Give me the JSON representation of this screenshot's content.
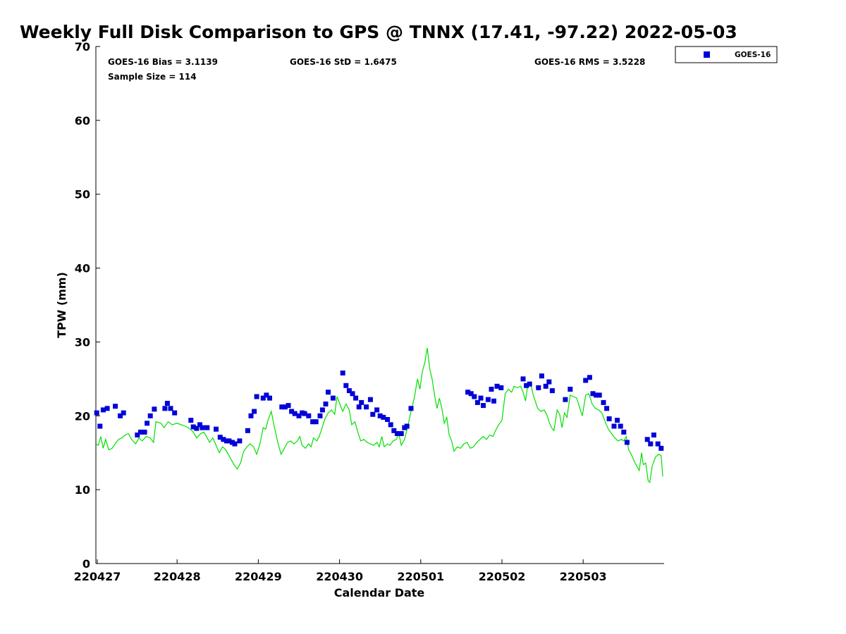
{
  "chart_data": {
    "type": "scatter",
    "title": "Weekly Full Disk Comparison to GPS @ TNNX (17.41, -97.22) 2022-05-03",
    "xlabel": "Calendar Date",
    "ylabel": "TPW (mm)",
    "ylim": [
      0,
      70
    ],
    "yticks": [
      "0",
      "10",
      "20",
      "30",
      "40",
      "50",
      "60",
      "70"
    ],
    "xlim_days": [
      0,
      7.0
    ],
    "xtick_labels": [
      "220427",
      "220428",
      "220429",
      "220430",
      "220501",
      "220502",
      "220503"
    ],
    "stats": {
      "bias": "GOES-16 Bias = 3.1139",
      "std": "GOES-16 StD = 1.6475",
      "rms": "GOES-16 RMS = 3.5228",
      "sample": "Sample Size = 114"
    },
    "legend": {
      "position": "top-right",
      "entries": [
        "GOES-16"
      ]
    },
    "colors": {
      "goes": "#0000d8",
      "gps": "#00e000"
    },
    "series": [
      {
        "name": "GOES-16",
        "marker": "square",
        "color": "#0000d8",
        "points": [
          [
            0.01,
            20.4
          ],
          [
            0.05,
            18.6
          ],
          [
            0.09,
            20.8
          ],
          [
            0.14,
            21.0
          ],
          [
            0.24,
            21.3
          ],
          [
            0.3,
            20.0
          ],
          [
            0.34,
            20.4
          ],
          [
            0.51,
            17.4
          ],
          [
            0.55,
            17.8
          ],
          [
            0.6,
            17.8
          ],
          [
            0.63,
            19.0
          ],
          [
            0.67,
            20.0
          ],
          [
            0.72,
            20.9
          ],
          [
            0.85,
            21.0
          ],
          [
            0.88,
            21.7
          ],
          [
            0.92,
            21.0
          ],
          [
            0.97,
            20.4
          ],
          [
            1.17,
            19.4
          ],
          [
            1.2,
            18.5
          ],
          [
            1.24,
            18.3
          ],
          [
            1.28,
            18.8
          ],
          [
            1.31,
            18.4
          ],
          [
            1.37,
            18.4
          ],
          [
            1.48,
            18.2
          ],
          [
            1.53,
            17.1
          ],
          [
            1.57,
            16.8
          ],
          [
            1.61,
            16.6
          ],
          [
            1.64,
            16.6
          ],
          [
            1.68,
            16.4
          ],
          [
            1.71,
            16.2
          ],
          [
            1.77,
            16.6
          ],
          [
            1.87,
            18.0
          ],
          [
            1.91,
            20.0
          ],
          [
            1.95,
            20.6
          ],
          [
            1.98,
            22.6
          ],
          [
            2.06,
            22.4
          ],
          [
            2.1,
            22.8
          ],
          [
            2.14,
            22.4
          ],
          [
            2.29,
            21.2
          ],
          [
            2.33,
            21.2
          ],
          [
            2.37,
            21.4
          ],
          [
            2.41,
            20.6
          ],
          [
            2.45,
            20.3
          ],
          [
            2.5,
            20.0
          ],
          [
            2.54,
            20.4
          ],
          [
            2.57,
            20.3
          ],
          [
            2.62,
            20.0
          ],
          [
            2.67,
            19.2
          ],
          [
            2.71,
            19.2
          ],
          [
            2.76,
            20.0
          ],
          [
            2.79,
            20.8
          ],
          [
            2.83,
            21.6
          ],
          [
            2.86,
            23.2
          ],
          [
            2.92,
            22.4
          ],
          [
            3.04,
            25.8
          ],
          [
            3.08,
            24.1
          ],
          [
            3.12,
            23.4
          ],
          [
            3.16,
            23.0
          ],
          [
            3.2,
            22.4
          ],
          [
            3.24,
            21.2
          ],
          [
            3.27,
            21.8
          ],
          [
            3.33,
            21.2
          ],
          [
            3.38,
            22.2
          ],
          [
            3.41,
            20.2
          ],
          [
            3.46,
            20.8
          ],
          [
            3.5,
            20.0
          ],
          [
            3.54,
            19.8
          ],
          [
            3.59,
            19.5
          ],
          [
            3.63,
            18.8
          ],
          [
            3.67,
            18.0
          ],
          [
            3.71,
            17.6
          ],
          [
            3.76,
            17.6
          ],
          [
            3.8,
            18.4
          ],
          [
            3.83,
            18.6
          ],
          [
            3.88,
            21.0
          ],
          [
            4.58,
            23.2
          ],
          [
            4.62,
            23.0
          ],
          [
            4.66,
            22.6
          ],
          [
            4.7,
            21.8
          ],
          [
            4.74,
            22.4
          ],
          [
            4.77,
            21.4
          ],
          [
            4.83,
            22.2
          ],
          [
            4.87,
            23.6
          ],
          [
            4.9,
            22.0
          ],
          [
            4.94,
            24.0
          ],
          [
            4.99,
            23.8
          ],
          [
            5.26,
            25.0
          ],
          [
            5.3,
            24.1
          ],
          [
            5.34,
            24.3
          ],
          [
            5.45,
            23.8
          ],
          [
            5.49,
            25.4
          ],
          [
            5.54,
            24.0
          ],
          [
            5.58,
            24.6
          ],
          [
            5.62,
            23.4
          ],
          [
            5.78,
            22.2
          ],
          [
            5.84,
            23.6
          ],
          [
            6.03,
            24.8
          ],
          [
            6.08,
            25.2
          ],
          [
            6.12,
            23.0
          ],
          [
            6.16,
            22.8
          ],
          [
            6.2,
            22.8
          ],
          [
            6.25,
            21.8
          ],
          [
            6.29,
            21.0
          ],
          [
            6.32,
            19.6
          ],
          [
            6.38,
            18.6
          ],
          [
            6.42,
            19.4
          ],
          [
            6.46,
            18.6
          ],
          [
            6.5,
            17.8
          ],
          [
            6.54,
            16.4
          ],
          [
            6.79,
            16.8
          ],
          [
            6.83,
            16.2
          ],
          [
            6.87,
            17.4
          ],
          [
            6.92,
            16.2
          ],
          [
            6.96,
            15.6
          ]
        ]
      },
      {
        "name": "GPS",
        "type": "line",
        "color": "#00e000",
        "points": [
          [
            0.0,
            16.2
          ],
          [
            0.03,
            16.0
          ],
          [
            0.06,
            17.2
          ],
          [
            0.09,
            15.6
          ],
          [
            0.12,
            16.8
          ],
          [
            0.16,
            15.4
          ],
          [
            0.2,
            15.6
          ],
          [
            0.25,
            16.4
          ],
          [
            0.28,
            16.8
          ],
          [
            0.32,
            17.0
          ],
          [
            0.36,
            17.4
          ],
          [
            0.4,
            17.6
          ],
          [
            0.44,
            16.8
          ],
          [
            0.49,
            16.2
          ],
          [
            0.53,
            17.0
          ],
          [
            0.57,
            16.6
          ],
          [
            0.62,
            17.2
          ],
          [
            0.67,
            17.0
          ],
          [
            0.71,
            16.4
          ],
          [
            0.74,
            19.2
          ],
          [
            0.8,
            19.0
          ],
          [
            0.84,
            18.4
          ],
          [
            0.89,
            19.2
          ],
          [
            0.94,
            18.8
          ],
          [
            1.0,
            19.0
          ],
          [
            1.05,
            18.8
          ],
          [
            1.1,
            18.6
          ],
          [
            1.14,
            18.4
          ],
          [
            1.2,
            17.8
          ],
          [
            1.24,
            17.0
          ],
          [
            1.29,
            17.6
          ],
          [
            1.33,
            17.8
          ],
          [
            1.36,
            17.2
          ],
          [
            1.4,
            16.4
          ],
          [
            1.44,
            17.0
          ],
          [
            1.48,
            16.0
          ],
          [
            1.52,
            15.0
          ],
          [
            1.56,
            15.8
          ],
          [
            1.6,
            15.4
          ],
          [
            1.64,
            14.6
          ],
          [
            1.67,
            14.0
          ],
          [
            1.7,
            13.4
          ],
          [
            1.74,
            12.8
          ],
          [
            1.78,
            13.6
          ],
          [
            1.82,
            15.2
          ],
          [
            1.86,
            15.8
          ],
          [
            1.9,
            16.2
          ],
          [
            1.94,
            15.8
          ],
          [
            1.98,
            14.8
          ],
          [
            2.02,
            16.2
          ],
          [
            2.06,
            18.4
          ],
          [
            2.09,
            18.2
          ],
          [
            2.12,
            19.4
          ],
          [
            2.16,
            20.6
          ],
          [
            2.2,
            18.4
          ],
          [
            2.24,
            16.4
          ],
          [
            2.28,
            14.8
          ],
          [
            2.32,
            15.6
          ],
          [
            2.36,
            16.4
          ],
          [
            2.4,
            16.6
          ],
          [
            2.44,
            16.2
          ],
          [
            2.48,
            16.6
          ],
          [
            2.51,
            17.2
          ],
          [
            2.54,
            16.0
          ],
          [
            2.58,
            15.6
          ],
          [
            2.62,
            16.2
          ],
          [
            2.65,
            15.8
          ],
          [
            2.68,
            17.0
          ],
          [
            2.72,
            16.6
          ],
          [
            2.75,
            17.2
          ],
          [
            2.78,
            18.2
          ],
          [
            2.82,
            19.6
          ],
          [
            2.86,
            20.4
          ],
          [
            2.9,
            20.8
          ],
          [
            2.94,
            20.2
          ],
          [
            2.97,
            22.6
          ],
          [
            3.01,
            21.4
          ],
          [
            3.04,
            20.6
          ],
          [
            3.08,
            21.6
          ],
          [
            3.12,
            20.8
          ],
          [
            3.15,
            18.8
          ],
          [
            3.19,
            19.2
          ],
          [
            3.22,
            18.0
          ],
          [
            3.26,
            16.6
          ],
          [
            3.3,
            16.8
          ],
          [
            3.34,
            16.4
          ],
          [
            3.38,
            16.2
          ],
          [
            3.42,
            16.0
          ],
          [
            3.46,
            16.4
          ],
          [
            3.49,
            15.8
          ],
          [
            3.52,
            17.2
          ],
          [
            3.55,
            15.8
          ],
          [
            3.59,
            16.2
          ],
          [
            3.62,
            16.0
          ],
          [
            3.66,
            16.6
          ],
          [
            3.7,
            16.8
          ],
          [
            3.73,
            17.6
          ],
          [
            3.76,
            16.0
          ],
          [
            3.8,
            16.8
          ],
          [
            3.84,
            18.6
          ],
          [
            3.88,
            20.6
          ],
          [
            3.92,
            22.4
          ],
          [
            3.96,
            25.0
          ],
          [
            3.99,
            23.6
          ],
          [
            4.02,
            26.0
          ],
          [
            4.05,
            27.2
          ],
          [
            4.08,
            29.2
          ],
          [
            4.11,
            26.4
          ],
          [
            4.14,
            25.0
          ],
          [
            4.17,
            22.8
          ],
          [
            4.2,
            21.0
          ],
          [
            4.23,
            22.4
          ],
          [
            4.26,
            21.0
          ],
          [
            4.29,
            19.0
          ],
          [
            4.32,
            19.8
          ],
          [
            4.35,
            17.4
          ],
          [
            4.38,
            16.6
          ],
          [
            4.41,
            15.2
          ],
          [
            4.45,
            15.8
          ],
          [
            4.49,
            15.6
          ],
          [
            4.53,
            16.2
          ],
          [
            4.57,
            16.4
          ],
          [
            4.61,
            15.6
          ],
          [
            4.65,
            15.8
          ],
          [
            4.69,
            16.4
          ],
          [
            4.73,
            16.8
          ],
          [
            4.77,
            17.2
          ],
          [
            4.81,
            16.8
          ],
          [
            4.85,
            17.4
          ],
          [
            4.89,
            17.2
          ],
          [
            4.92,
            18.0
          ],
          [
            4.96,
            18.8
          ],
          [
            5.0,
            19.4
          ],
          [
            5.04,
            23.0
          ],
          [
            5.08,
            23.6
          ],
          [
            5.12,
            23.2
          ],
          [
            5.15,
            24.0
          ],
          [
            5.19,
            23.8
          ],
          [
            5.23,
            24.0
          ],
          [
            5.26,
            23.2
          ],
          [
            5.29,
            22.0
          ],
          [
            5.32,
            24.4
          ],
          [
            5.35,
            24.6
          ],
          [
            5.38,
            23.0
          ],
          [
            5.41,
            22.0
          ],
          [
            5.44,
            21.0
          ],
          [
            5.48,
            20.6
          ],
          [
            5.52,
            20.8
          ],
          [
            5.55,
            20.2
          ],
          [
            5.58,
            19.2
          ],
          [
            5.61,
            18.4
          ],
          [
            5.64,
            18.0
          ],
          [
            5.68,
            20.8
          ],
          [
            5.71,
            20.2
          ],
          [
            5.74,
            18.4
          ],
          [
            5.77,
            20.4
          ],
          [
            5.8,
            19.8
          ],
          [
            5.84,
            22.8
          ],
          [
            5.88,
            22.6
          ],
          [
            5.92,
            22.4
          ],
          [
            5.96,
            21.0
          ],
          [
            5.99,
            20.0
          ],
          [
            6.03,
            22.8
          ],
          [
            6.07,
            23.0
          ],
          [
            6.11,
            21.6
          ],
          [
            6.15,
            21.0
          ],
          [
            6.19,
            20.8
          ],
          [
            6.23,
            20.4
          ],
          [
            6.27,
            19.2
          ],
          [
            6.31,
            18.2
          ],
          [
            6.35,
            17.6
          ],
          [
            6.39,
            17.0
          ],
          [
            6.43,
            16.6
          ],
          [
            6.47,
            16.8
          ],
          [
            6.5,
            16.6
          ],
          [
            6.53,
            17.2
          ],
          [
            6.56,
            15.4
          ],
          [
            6.6,
            14.6
          ],
          [
            6.64,
            13.6
          ],
          [
            6.67,
            13.0
          ],
          [
            6.69,
            12.6
          ],
          [
            6.72,
            15.0
          ],
          [
            6.74,
            13.4
          ],
          [
            6.77,
            13.6
          ],
          [
            6.8,
            11.2
          ],
          [
            6.82,
            11.0
          ],
          [
            6.85,
            13.2
          ],
          [
            6.89,
            14.4
          ],
          [
            6.93,
            14.8
          ],
          [
            6.96,
            14.6
          ],
          [
            6.98,
            11.8
          ]
        ]
      }
    ]
  }
}
